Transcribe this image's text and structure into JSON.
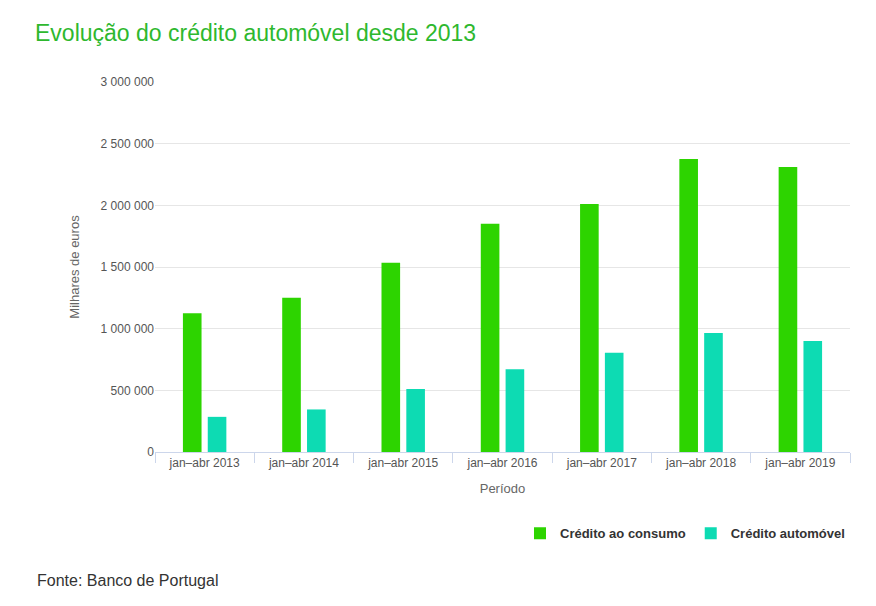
{
  "chart_data": {
    "type": "bar",
    "title": "Evolução do crédito automóvel desde 2013",
    "x_label": "Período",
    "y_label": "Milhares de euros",
    "categories": [
      "jan–abr 2013",
      "jan–abr 2014",
      "jan–abr 2015",
      "jan–abr 2016",
      "jan–abr 2017",
      "jan–abr 2018",
      "jan–abr 2019"
    ],
    "series": [
      {
        "name": "Crédito ao consumo",
        "color": "#2dd400",
        "values": [
          1125000,
          1250000,
          1535000,
          1850000,
          2010000,
          2375000,
          2310000
        ]
      },
      {
        "name": "Crédito automóvel",
        "color": "#0ddbb3",
        "values": [
          285000,
          345000,
          510000,
          670000,
          805000,
          965000,
          900000
        ]
      }
    ],
    "ylim": [
      0,
      3000000
    ],
    "yticks": [
      0,
      {
        "value": 500000,
        "label": "500 000"
      },
      {
        "value": 1000000,
        "label": "1 000 000"
      },
      {
        "value": 1500000,
        "label": "1 500 000"
      },
      {
        "value": 2000000,
        "label": "2 000 000"
      },
      {
        "value": 2500000,
        "label": "2 500 000"
      },
      {
        "value": 3000000,
        "label": "3 000 000"
      }
    ],
    "grid": true,
    "legend": "bottom right",
    "annotations": [
      "Fonte: Banco de Portugal"
    ]
  }
}
